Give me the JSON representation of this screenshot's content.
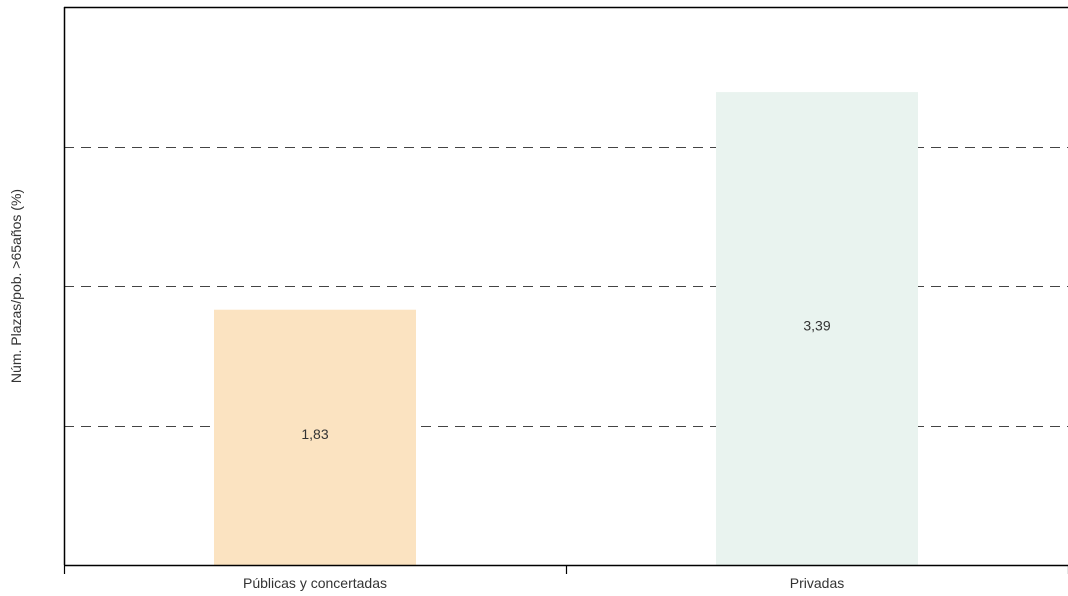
{
  "chart_data": {
    "type": "bar",
    "title": "",
    "xlabel": "",
    "ylabel": "Núm. Plazas/pob. >65años (%)",
    "categories": [
      "Públicas y concertadas",
      "Privadas"
    ],
    "values": [
      1.83,
      3.39
    ],
    "data_labels": [
      "1,83",
      "3,39"
    ],
    "colors": [
      "#fbe3c1",
      "#e9f3ef"
    ],
    "ylim": [
      0,
      4
    ],
    "gridlines": [
      1,
      2,
      3
    ],
    "grid": true,
    "legend": "none"
  }
}
